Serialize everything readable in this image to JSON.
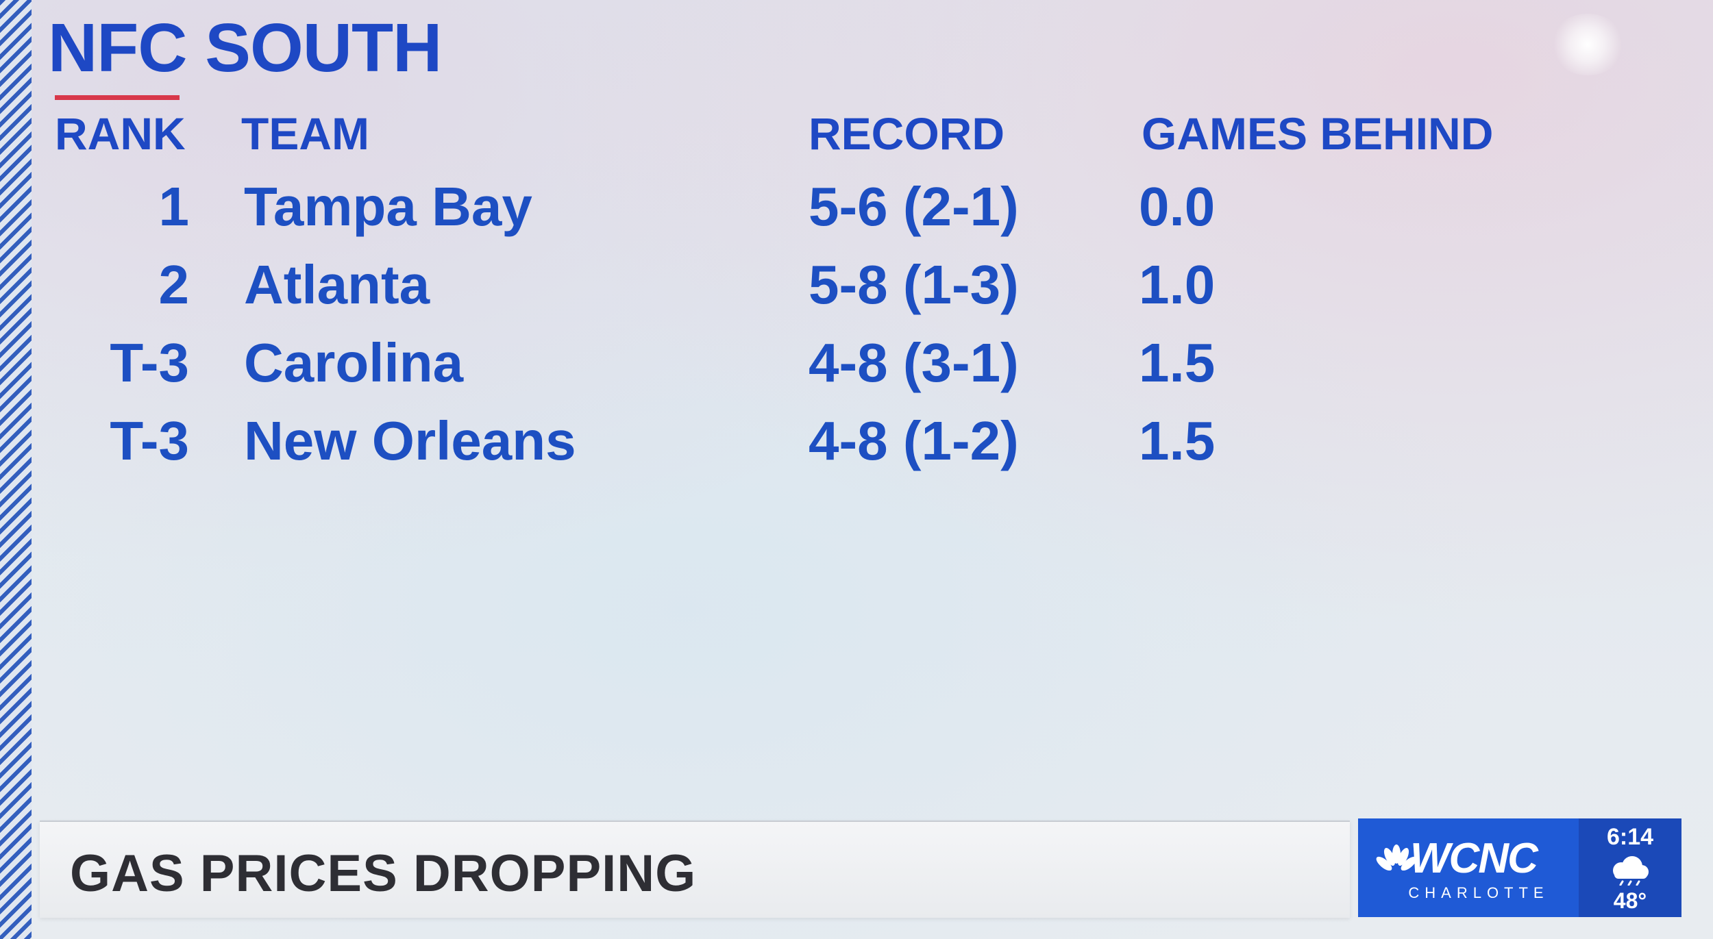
{
  "title": "NFC SOUTH",
  "columns": {
    "rank": "RANK",
    "team": "TEAM",
    "record": "RECORD",
    "games_behind": "GAMES BEHIND"
  },
  "rows": [
    {
      "rank": "1",
      "team": "Tampa Bay",
      "record": "5-6 (2-1)",
      "gb": "0.0"
    },
    {
      "rank": "2",
      "team": "Atlanta",
      "record": "5-8 (1-3)",
      "gb": "1.0"
    },
    {
      "rank": "T-3",
      "team": "Carolina",
      "record": "4-8 (3-1)",
      "gb": "1.5"
    },
    {
      "rank": "T-3",
      "team": "New Orleans",
      "record": "4-8 (1-2)",
      "gb": "1.5"
    }
  ],
  "ticker": {
    "headline": "GAS PRICES DROPPING"
  },
  "station": {
    "name": "WCNC",
    "city": "CHARLOTTE",
    "logo_icon": "peacock-icon"
  },
  "weather": {
    "time": "6:14",
    "icon": "cloud-icon",
    "temperature": "48°"
  },
  "colors": {
    "accent_blue": "#1e48c4",
    "underline_red": "#d8384a",
    "logo_blue": "#1f5ad6"
  }
}
